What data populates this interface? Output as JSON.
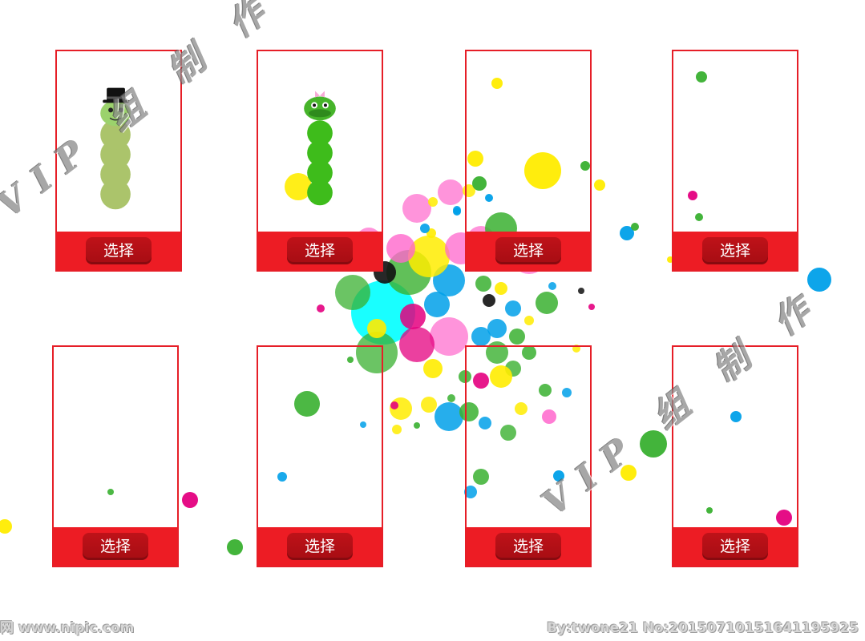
{
  "cards": [
    {
      "button_label": "选择",
      "character": "green-worm-with-top-hat"
    },
    {
      "button_label": "选择",
      "character": "green-snake-with-bow"
    },
    {
      "button_label": "选择",
      "character": "empty"
    },
    {
      "button_label": "选择",
      "character": "empty"
    },
    {
      "button_label": "选择",
      "character": "empty"
    },
    {
      "button_label": "选择",
      "character": "empty"
    },
    {
      "button_label": "选择",
      "character": "empty"
    },
    {
      "button_label": "选择",
      "character": "empty"
    }
  ],
  "watermarks": {
    "top_left": "VIP 组 制 作",
    "bottom_right": "VIP 组 制 作"
  },
  "footer": {
    "left": "网 www.nipic.com",
    "right": "By:twone21 No:20150710151641195925"
  },
  "colors": {
    "accent_red": "#ed1c24",
    "button_dark_red": "#b01017",
    "worm_green": "#a9c76a",
    "snake_green": "#3eb821",
    "bubble_palette": [
      "#ffec00",
      "#00a0e9",
      "#e4007f",
      "#39b030",
      "#00ffff",
      "#ff66cc",
      "#111111"
    ]
  }
}
